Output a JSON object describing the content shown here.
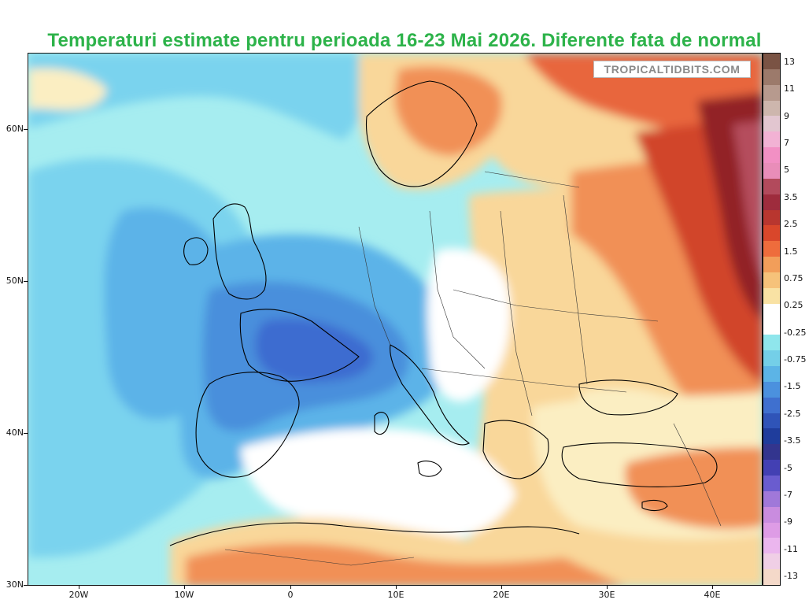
{
  "title": "Temperaturi estimate pentru perioada 16-23 Mai 2026. Diferente fata de normal",
  "watermark": "TROPICALTIDBITS.COM",
  "lat_labels": [
    "60N",
    "50N",
    "40N",
    "30N"
  ],
  "lon_labels": [
    "20W",
    "10W",
    "0",
    "10E",
    "20E",
    "30E",
    "40E"
  ],
  "colorbar": {
    "labels": [
      "13",
      "11",
      "9",
      "7",
      "5",
      "3.5",
      "2.5",
      "1.5",
      "0.75",
      "0.25",
      "-0.25",
      "-0.75",
      "-1.5",
      "-2.5",
      "-3.5",
      "-5",
      "-7",
      "-9",
      "-11",
      "-13"
    ],
    "colors": [
      "#7a5344",
      "#9c7a6b",
      "#b79a8e",
      "#cdb6ad",
      "#e2c6d0",
      "#f2b2d4",
      "#f290c4",
      "#e98db9",
      "#b24a5c",
      "#9e2c3d",
      "#b8362f",
      "#d9472b",
      "#ee6c3c",
      "#f29e5a",
      "#f6c27a",
      "#f9e2a4",
      "#ffffff",
      "#ffffff",
      "#8fe6ec",
      "#74cfe8",
      "#5cb4e6",
      "#4b91de",
      "#3f70cf",
      "#2f54b8",
      "#1f3d9c",
      "#33358e",
      "#4340b3",
      "#6a5ccf",
      "#a078d9",
      "#c98cdf",
      "#de9ce6",
      "#ebb6ee",
      "#f0cfe6",
      "#f4d9c9"
    ]
  },
  "legend": {
    "colors_warm": [
      "#fbeec2",
      "#f9d79a",
      "#f6b877",
      "#f19056",
      "#e8663c",
      "#d1452a",
      "#b52d22",
      "#922026",
      "#b54d5d"
    ],
    "colors_cool": [
      "#ffffff",
      "#a6edf0",
      "#7ad3ee",
      "#5cb3e8",
      "#4a8fdc",
      "#3c6cd0"
    ],
    "land_border": "#000000"
  }
}
